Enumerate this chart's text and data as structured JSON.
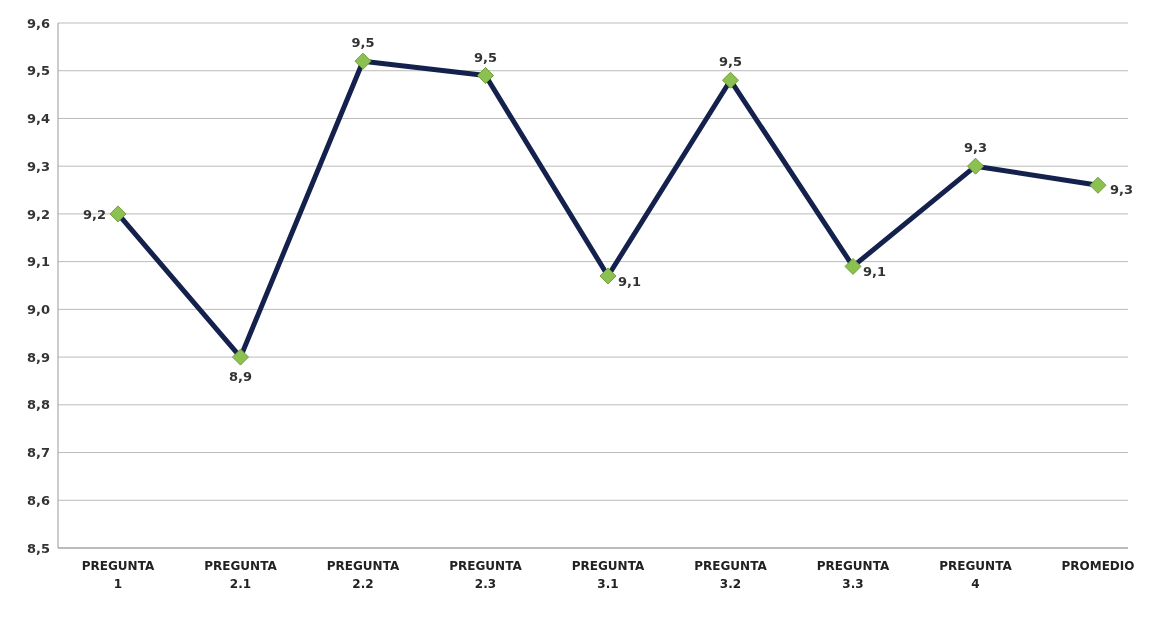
{
  "chart_data": {
    "type": "line",
    "categories": [
      "PREGUNTA 1",
      "PREGUNTA 2.1",
      "PREGUNTA 2.2",
      "PREGUNTA 2.3",
      "PREGUNTA 3.1",
      "PREGUNTA 3.2",
      "PREGUNTA 3.3",
      "PREGUNTA 4",
      "PROMEDIO"
    ],
    "series": [
      {
        "color": "#14214d",
        "values": [
          9.2,
          8.9,
          9.52,
          9.49,
          9.07,
          9.48,
          9.09,
          9.3,
          9.26
        ],
        "value_labels": [
          "9,2",
          "8,9",
          "9,5",
          "9,5",
          "9,1",
          "9,5",
          "9,1",
          "9,3",
          "9,3"
        ]
      }
    ],
    "ylim": [
      8.5,
      9.6
    ],
    "yticks": [
      {
        "value": 8.5,
        "label": "8,5"
      },
      {
        "value": 8.6,
        "label": "8,6"
      },
      {
        "value": 8.7,
        "label": "8,7"
      },
      {
        "value": 8.8,
        "label": "8,8"
      },
      {
        "value": 8.9,
        "label": "8,9"
      },
      {
        "value": 9.0,
        "label": "9,0"
      },
      {
        "value": 9.1,
        "label": "9,1"
      },
      {
        "value": 9.2,
        "label": "9,2"
      },
      {
        "value": 9.3,
        "label": "9,3"
      },
      {
        "value": 9.4,
        "label": "9,4"
      },
      {
        "value": 9.5,
        "label": "9,5"
      },
      {
        "value": 9.6,
        "label": "9,6"
      }
    ],
    "grid": "y",
    "marker": "diamond",
    "line_style": "solid",
    "legend": false
  }
}
